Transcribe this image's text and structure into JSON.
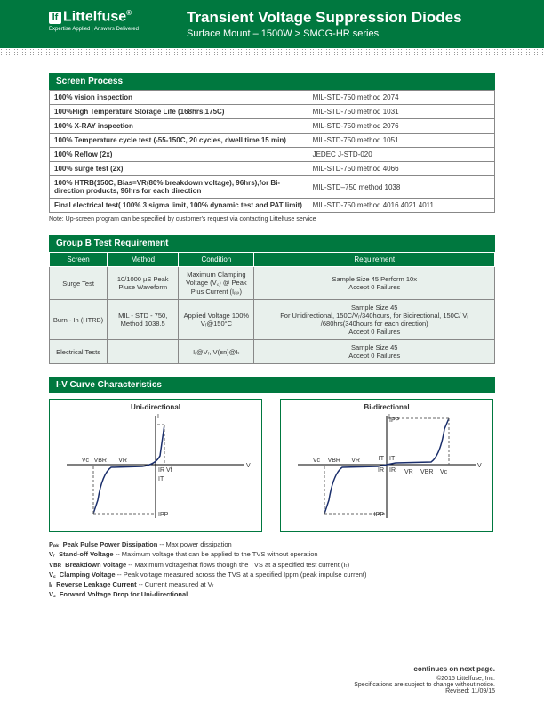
{
  "header": {
    "brand": "Littelfuse",
    "tagline": "Expertise Applied | Answers Delivered",
    "title": "Transient Voltage Suppression Diodes",
    "subtitle": "Surface Mount – 1500W  >  SMCG-HR series"
  },
  "screenProcess": {
    "title": "Screen Process",
    "rows": [
      [
        "100% vision inspection",
        "MIL-STD-750 method 2074"
      ],
      [
        "100%High Temperature Storage Life (168hrs,175C)",
        "MIL-STD-750 method 1031"
      ],
      [
        "100% X-RAY inspection",
        "MIL-STD-750 method 2076"
      ],
      [
        "100% Temperature cycle test (-55-150C, 20 cycles, dwell time 15 min)",
        "MIL-STD-750 method 1051"
      ],
      [
        "100% Reflow (2x)",
        "JEDEC J-STD-020"
      ],
      [
        "100% surge test   (2x)",
        "MIL-STD-750 method 4066"
      ],
      [
        "100% HTRB(150C,  Bias=VR(80% breakdown voltage), 96hrs),for Bi-direction products, 96hrs for each direction",
        "MIL-STD–750 method 1038"
      ],
      [
        "Final electrical test( 100% 3 sigma limit, 100% dynamic test and PAT limit)",
        "MIL-STD-750 method 4016.4021.4011"
      ]
    ],
    "note": "Note: Up-screen program can be specified by customer's request via contacting Littelfuse service"
  },
  "groupB": {
    "title": "Group B Test Requirement",
    "headers": [
      "Screen",
      "Method",
      "Condition",
      "Requirement"
    ],
    "rows": [
      [
        "Surge Test",
        "10/1000 µS Peak Pluse Waveform",
        "Maximum Clamping Voltage (V꜀) @ Peak Plus Current (Iₚₚ)",
        "Sample Size 45  Perform 10x\nAccept 0 Failures"
      ],
      [
        "Burn - In (HTRB)",
        "MIL - STD - 750, Method 1038.5",
        "Applied Voltage 100% Vᵣ@150°C",
        "Sample Size 45\nFor Unidirectional, 150C/Vᵣ/340hours, for Bidirectional, 150C/ Vᵣ /680hrs(340hours for each direction)\nAccept 0 Failures"
      ],
      [
        "Electrical Tests",
        "–",
        "Iᵣ@Vᵣ, V(ʙʀ)@Iₜ",
        "Sample Size 45\nAccept 0 Failures"
      ]
    ]
  },
  "ivCurve": {
    "title": "I-V Curve Characteristics",
    "left": "Uni-directional",
    "right": "Bi-directional",
    "labels": {
      "Vc": "Vc",
      "VBR": "VBR",
      "VR": "VR",
      "IR": "IR",
      "Vf": "Vf",
      "IT": "IT",
      "IPP": "IPP",
      "V": "V",
      "I": "I"
    },
    "stroke": "#1a2e6b",
    "dash": "#666"
  },
  "defs": [
    [
      "Pₚₖ",
      "Peak Pulse Power Dissipation",
      "-- Max power dissipation"
    ],
    [
      "Vᵣ",
      "Stand-off Voltage",
      "-- Maximum voltage that can be applied to the TVS without operation"
    ],
    [
      "Vʙʀ",
      "Breakdown Voltage",
      "--  Maximum voltagethat flows though the TVS at a specified test current (Iₜ)"
    ],
    [
      "V꜀",
      "Clamping Voltage",
      "-- Peak voltage measured across the TVS at a specified Ippm (peak impulse current)"
    ],
    [
      "Iᵣ",
      "Reverse Leakage Current",
      "-- Current measured at Vᵣ"
    ],
    [
      "V꜀",
      "Forward Voltage Drop for Uni-directional",
      ""
    ]
  ],
  "footer": {
    "cont": "continues on next page.",
    "l1": "©2015 Littelfuse, Inc.",
    "l2": "Specifications are subject to change without notice.",
    "l3": "Revised: 11/09/15"
  }
}
